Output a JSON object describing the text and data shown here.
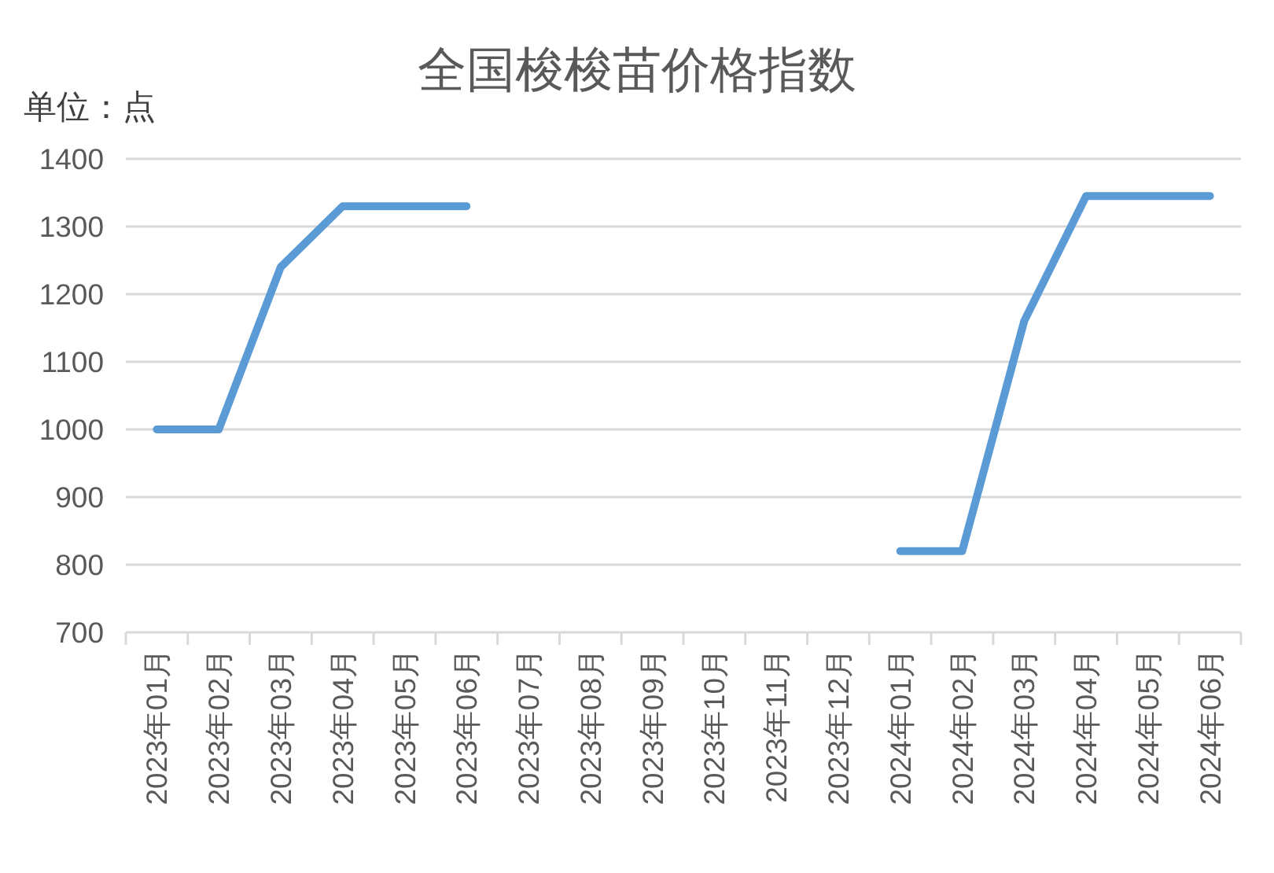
{
  "chart_data": {
    "type": "line",
    "title": "全国梭梭苗价格指数",
    "ylabel": "单位：点",
    "categories": [
      "2023年01月",
      "2023年02月",
      "2023年03月",
      "2023年04月",
      "2023年05月",
      "2023年06月",
      "2023年07月",
      "2023年08月",
      "2023年09月",
      "2023年10月",
      "2023年11月",
      "2023年12月",
      "2024年01月",
      "2024年02月",
      "2024年03月",
      "2024年04月",
      "2024年05月",
      "2024年06月"
    ],
    "series": [
      {
        "color": "#5b9bd5",
        "values": [
          1000,
          1000,
          1240,
          1330,
          1330,
          1330,
          null,
          null,
          null,
          null,
          null,
          null,
          820,
          820,
          1160,
          1345,
          1345,
          1345
        ]
      }
    ],
    "ylim": [
      700,
      1400
    ],
    "yticks": [
      700,
      800,
      900,
      1000,
      1100,
      1200,
      1300,
      1400
    ],
    "grid": "y",
    "marker": "none",
    "line_style": "solid"
  }
}
